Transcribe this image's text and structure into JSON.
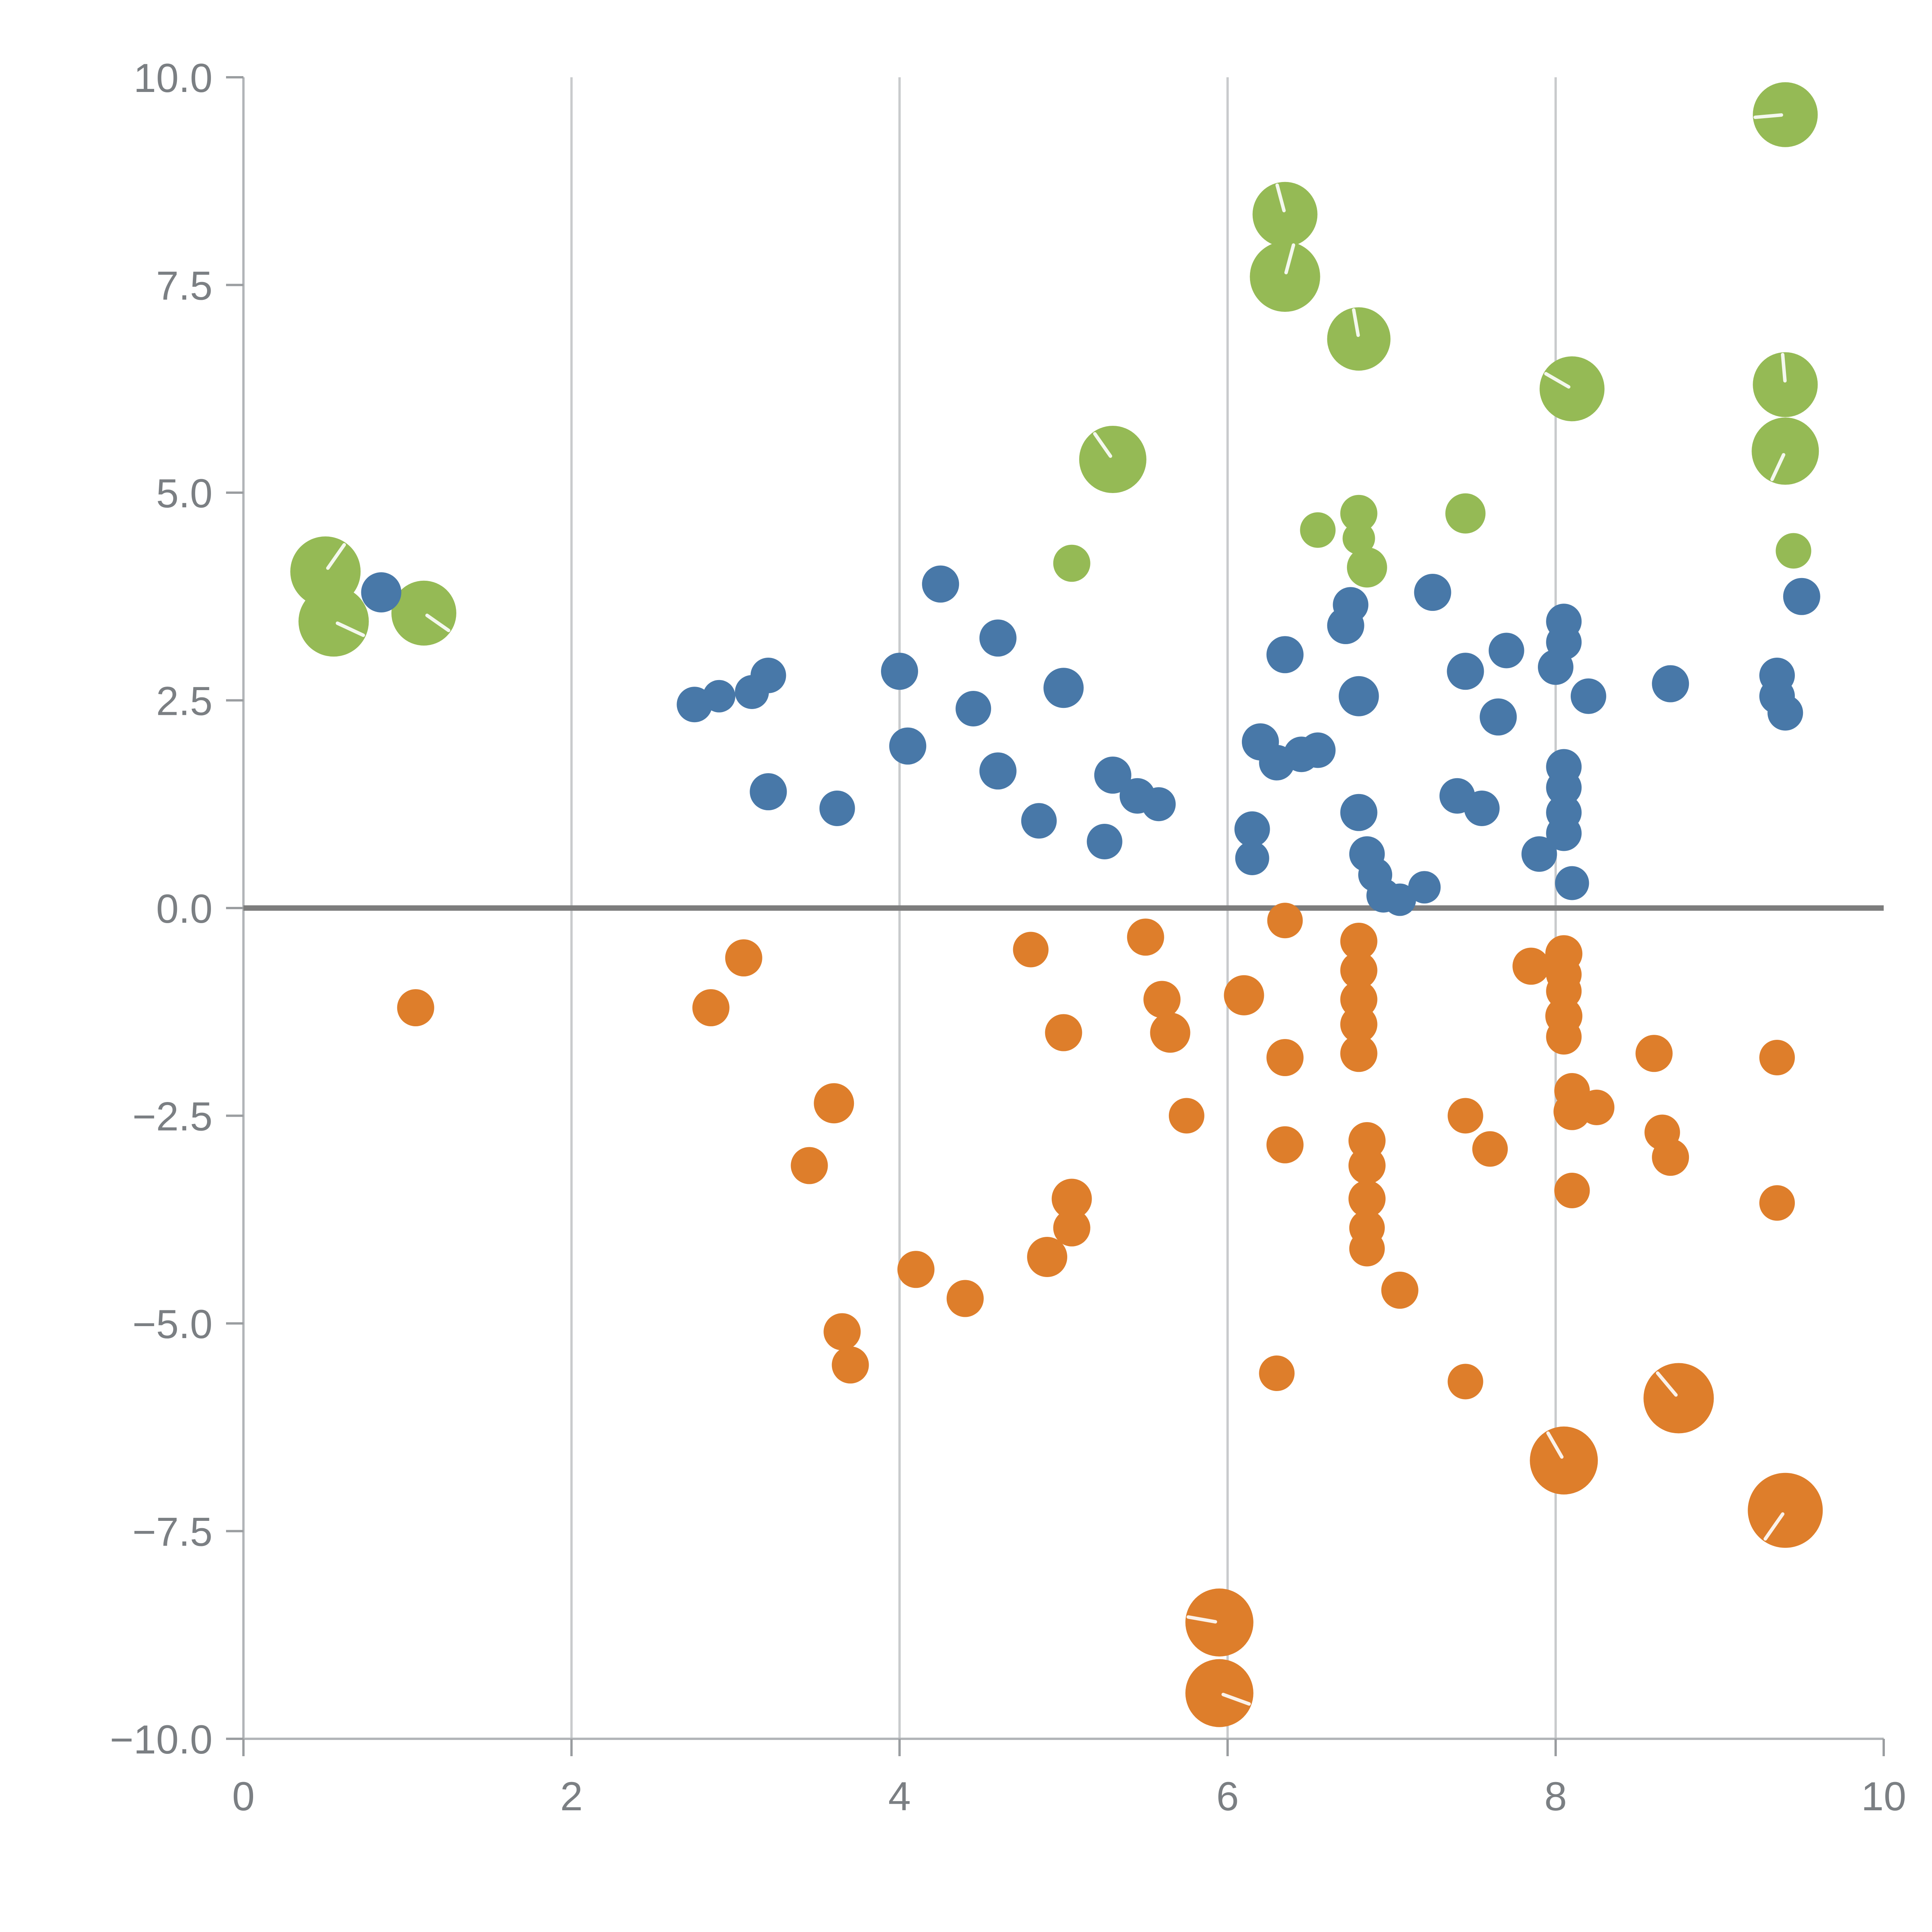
{
  "chart_data": {
    "type": "scatter",
    "title": "",
    "xlabel": "",
    "ylabel": "",
    "xlim": [
      0,
      10
    ],
    "ylim": [
      -10,
      10
    ],
    "x_ticks": [
      0,
      2,
      4,
      6,
      8,
      10
    ],
    "x_tick_labels": [
      "0",
      "2",
      "4",
      "6",
      "8",
      "10"
    ],
    "y_ticks": [
      -10,
      -7.5,
      -5,
      -2.5,
      0,
      2.5,
      5,
      7.5,
      10
    ],
    "y_tick_labels": [
      "−10.0",
      "−7.5",
      "−5.0",
      "−2.5",
      "0.0",
      "2.5",
      "5.0",
      "7.5",
      "10.0"
    ],
    "grid": {
      "vertical_lines_at": [
        2,
        4,
        6,
        8
      ],
      "zero_line": true
    },
    "legend": "none",
    "style": {
      "grid_color": "#c9cbcd",
      "axis_color": "#b2b5b8",
      "tick_color": "#9a9da0",
      "zero_line_color": "#7d7d7d",
      "label_color": "#7b7f83",
      "background": "#ffffff",
      "marker_highlight": "#ffffff"
    },
    "series": [
      {
        "name": "green",
        "color": "#95ba55",
        "points": [
          [
            0.5,
            4.05,
            91,
            55
          ],
          [
            0.55,
            3.45,
            91,
            -25
          ],
          [
            1.1,
            3.55,
            84,
            -35
          ],
          [
            5.05,
            4.15,
            48
          ],
          [
            5.3,
            5.4,
            87,
            125
          ],
          [
            6.35,
            8.35,
            84,
            105
          ],
          [
            6.35,
            7.6,
            91,
            75
          ],
          [
            6.55,
            4.55,
            46
          ],
          [
            6.8,
            6.85,
            82,
            100
          ],
          [
            6.8,
            4.75,
            48
          ],
          [
            6.8,
            4.45,
            42
          ],
          [
            6.85,
            4.1,
            52
          ],
          [
            7.45,
            4.75,
            52
          ],
          [
            8.1,
            6.25,
            84,
            150
          ],
          [
            9.4,
            9.55,
            84,
            185
          ],
          [
            9.4,
            6.3,
            84,
            95
          ],
          [
            9.4,
            5.5,
            87,
            245
          ],
          [
            9.45,
            4.3,
            46
          ]
        ]
      },
      {
        "name": "orange",
        "color": "#de7e2b",
        "points": [
          [
            1.05,
            -1.2,
            48
          ],
          [
            2.85,
            -1.2,
            48
          ],
          [
            3.05,
            -0.6,
            48
          ],
          [
            3.45,
            -3.1,
            48
          ],
          [
            3.6,
            -2.35,
            52
          ],
          [
            3.65,
            -5.1,
            48
          ],
          [
            3.7,
            -5.5,
            48
          ],
          [
            4.1,
            -4.35,
            48
          ],
          [
            4.4,
            -4.7,
            48
          ],
          [
            4.8,
            -0.5,
            46
          ],
          [
            4.9,
            -4.2,
            52
          ],
          [
            5.0,
            -1.5,
            48
          ],
          [
            5.05,
            -3.5,
            52
          ],
          [
            5.05,
            -3.85,
            48
          ],
          [
            5.5,
            -0.35,
            48
          ],
          [
            5.6,
            -1.1,
            48
          ],
          [
            5.65,
            -1.5,
            52
          ],
          [
            5.75,
            -2.5,
            46
          ],
          [
            6.1,
            -1.05,
            52
          ],
          [
            6.35,
            -1.8,
            48
          ],
          [
            6.35,
            -0.15,
            46
          ],
          [
            6.35,
            -2.85,
            48
          ],
          [
            6.3,
            -5.6,
            46
          ],
          [
            6.8,
            -0.4,
            48
          ],
          [
            6.8,
            -0.75,
            48
          ],
          [
            6.8,
            -1.1,
            48
          ],
          [
            6.8,
            -1.4,
            48
          ],
          [
            6.8,
            -1.75,
            48
          ],
          [
            6.85,
            -2.8,
            48
          ],
          [
            6.85,
            -3.1,
            48
          ],
          [
            6.85,
            -3.5,
            48
          ],
          [
            6.85,
            -3.85,
            46
          ],
          [
            6.85,
            -4.1,
            46
          ],
          [
            7.05,
            -4.6,
            48
          ],
          [
            7.45,
            -2.5,
            46
          ],
          [
            7.45,
            -5.7,
            46
          ],
          [
            7.6,
            -2.9,
            46
          ],
          [
            7.85,
            -0.7,
            48
          ],
          [
            8.05,
            -0.55,
            48
          ],
          [
            8.05,
            -0.8,
            46
          ],
          [
            8.05,
            -1.0,
            46
          ],
          [
            8.05,
            -1.3,
            48
          ],
          [
            8.05,
            -1.55,
            46
          ],
          [
            8.1,
            -2.2,
            46
          ],
          [
            8.1,
            -2.45,
            48
          ],
          [
            8.25,
            -2.4,
            46
          ],
          [
            8.1,
            -3.4,
            46
          ],
          [
            8.05,
            -6.65,
            88,
            120
          ],
          [
            8.6,
            -1.75,
            48
          ],
          [
            8.65,
            -2.7,
            46
          ],
          [
            8.7,
            -3.0,
            48
          ],
          [
            8.75,
            -5.9,
            91,
            130
          ],
          [
            9.35,
            -1.8,
            46
          ],
          [
            9.35,
            -3.55,
            46
          ],
          [
            9.4,
            -7.25,
            97,
            235
          ],
          [
            5.95,
            -8.6,
            88,
            170
          ],
          [
            5.95,
            -9.45,
            88,
            -20
          ]
        ]
      },
      {
        "name": "blue",
        "color": "#4878a8",
        "points": [
          [
            0.84,
            3.8,
            52
          ],
          [
            2.75,
            2.45,
            46
          ],
          [
            2.9,
            2.55,
            42
          ],
          [
            3.1,
            2.6,
            44
          ],
          [
            3.2,
            2.8,
            46
          ],
          [
            3.2,
            1.4,
            48
          ],
          [
            3.62,
            1.2,
            46
          ],
          [
            4.0,
            2.85,
            48
          ],
          [
            4.05,
            1.95,
            48
          ],
          [
            4.25,
            3.9,
            48
          ],
          [
            4.45,
            2.4,
            46
          ],
          [
            4.6,
            3.25,
            48
          ],
          [
            4.6,
            1.65,
            48
          ],
          [
            4.85,
            1.05,
            46
          ],
          [
            5.0,
            2.65,
            52
          ],
          [
            5.3,
            1.6,
            48
          ],
          [
            5.25,
            0.8,
            46
          ],
          [
            5.45,
            1.35,
            46
          ],
          [
            5.58,
            1.25,
            44
          ],
          [
            6.15,
            0.95,
            46
          ],
          [
            6.15,
            0.6,
            44
          ],
          [
            6.2,
            2.0,
            48
          ],
          [
            6.3,
            1.75,
            46
          ],
          [
            6.35,
            3.05,
            48
          ],
          [
            6.45,
            1.85,
            46
          ],
          [
            6.55,
            1.9,
            46
          ],
          [
            6.72,
            3.4,
            48
          ],
          [
            6.75,
            3.65,
            46
          ],
          [
            6.8,
            2.55,
            52
          ],
          [
            6.8,
            1.15,
            48
          ],
          [
            6.85,
            0.65,
            46
          ],
          [
            6.9,
            0.4,
            44
          ],
          [
            6.95,
            0.15,
            44
          ],
          [
            7.05,
            0.1,
            42
          ],
          [
            7.2,
            0.25,
            42
          ],
          [
            7.25,
            3.8,
            48
          ],
          [
            7.4,
            1.35,
            46
          ],
          [
            7.55,
            1.2,
            46
          ],
          [
            7.45,
            2.85,
            48
          ],
          [
            7.65,
            2.3,
            48
          ],
          [
            7.7,
            3.1,
            46
          ],
          [
            7.9,
            0.65,
            46
          ],
          [
            8.0,
            2.9,
            46
          ],
          [
            8.05,
            3.2,
            46
          ],
          [
            8.05,
            3.45,
            46
          ],
          [
            8.05,
            1.7,
            46
          ],
          [
            8.05,
            1.45,
            46
          ],
          [
            8.05,
            1.15,
            46
          ],
          [
            8.05,
            0.9,
            46
          ],
          [
            8.1,
            0.3,
            44
          ],
          [
            8.2,
            2.55,
            46
          ],
          [
            8.7,
            2.7,
            48
          ],
          [
            9.35,
            2.8,
            46
          ],
          [
            9.35,
            2.55,
            46
          ],
          [
            9.4,
            2.35,
            46
          ],
          [
            9.5,
            3.75,
            48
          ]
        ]
      }
    ]
  }
}
